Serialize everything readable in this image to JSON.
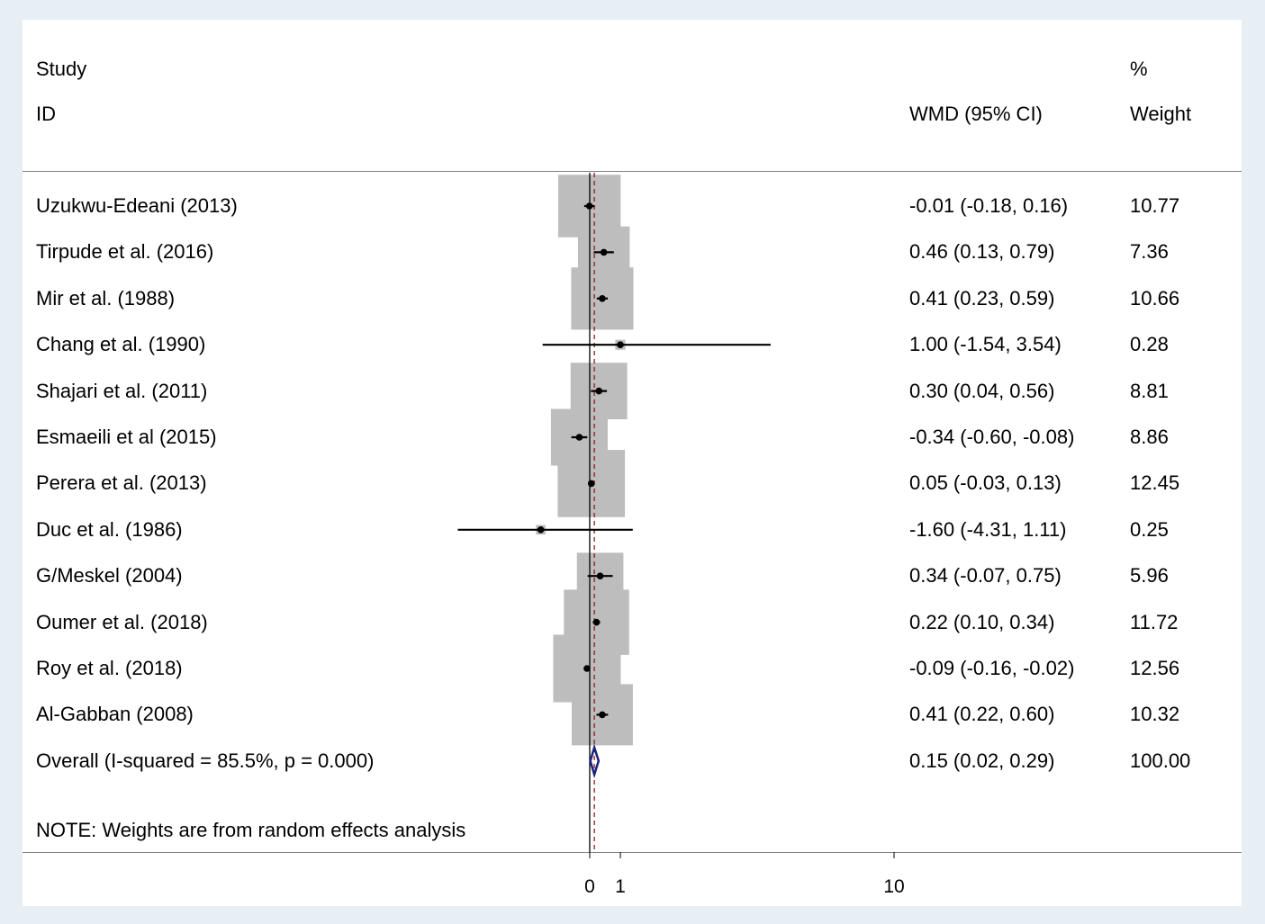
{
  "chart_data": {
    "type": "forest",
    "header": {
      "study_line1": "Study",
      "study_line2": "ID",
      "effect": "WMD (95% CI)",
      "weight_line1": "%",
      "weight_line2": "Weight"
    },
    "studies": [
      {
        "label": "Uzukwu-Edeani (2013)",
        "es_text": "-0.01 (-0.18, 0.16)",
        "weight_text": "10.77",
        "es": -0.01,
        "lo": -0.18,
        "hi": 0.16,
        "weight": 10.77
      },
      {
        "label": "Tirpude et al. (2016)",
        "es_text": "0.46 (0.13, 0.79)",
        "weight_text": "7.36",
        "es": 0.46,
        "lo": 0.13,
        "hi": 0.79,
        "weight": 7.36
      },
      {
        "label": "Mir et al. (1988)",
        "es_text": "0.41 (0.23, 0.59)",
        "weight_text": "10.66",
        "es": 0.41,
        "lo": 0.23,
        "hi": 0.59,
        "weight": 10.66
      },
      {
        "label": "Chang et al. (1990)",
        "es_text": "1.00 (-1.54, 3.54)",
        "weight_text": "0.28",
        "es": 1.0,
        "lo": -1.54,
        "hi": 3.54,
        "weight": 0.28
      },
      {
        "label": "Shajari et al. (2011)",
        "es_text": "0.30 (0.04, 0.56)",
        "weight_text": "8.81",
        "es": 0.3,
        "lo": 0.04,
        "hi": 0.56,
        "weight": 8.81
      },
      {
        "label": "Esmaeili et al (2015)",
        "es_text": "-0.34 (-0.60, -0.08)",
        "weight_text": "8.86",
        "es": -0.34,
        "lo": -0.6,
        "hi": -0.08,
        "weight": 8.86
      },
      {
        "label": "Perera et al. (2013)",
        "es_text": "0.05 (-0.03, 0.13)",
        "weight_text": "12.45",
        "es": 0.05,
        "lo": -0.03,
        "hi": 0.13,
        "weight": 12.45
      },
      {
        "label": "Duc et al. (1986)",
        "es_text": "-1.60 (-4.31, 1.11)",
        "weight_text": "0.25",
        "es": -1.6,
        "lo": -4.31,
        "hi": 1.11,
        "weight": 0.25
      },
      {
        "label": "G/Meskel (2004)",
        "es_text": "0.34 (-0.07, 0.75)",
        "weight_text": "5.96",
        "es": 0.34,
        "lo": -0.07,
        "hi": 0.75,
        "weight": 5.96
      },
      {
        "label": "Oumer et al. (2018)",
        "es_text": "0.22 (0.10, 0.34)",
        "weight_text": "11.72",
        "es": 0.22,
        "lo": 0.1,
        "hi": 0.34,
        "weight": 11.72
      },
      {
        "label": "Roy et al. (2018)",
        "es_text": "-0.09 (-0.16, -0.02)",
        "weight_text": "12.56",
        "es": -0.09,
        "lo": -0.16,
        "hi": -0.02,
        "weight": 12.56
      },
      {
        "label": "Al-Gabban (2008)",
        "es_text": "0.41 (0.22, 0.60)",
        "weight_text": "10.32",
        "es": 0.41,
        "lo": 0.22,
        "hi": 0.6,
        "weight": 10.32
      }
    ],
    "overall": {
      "label": "Overall  (I-squared = 85.5%, p = 0.000)",
      "es_text": "0.15 (0.02, 0.29)",
      "weight_text": "100.00",
      "es": 0.15,
      "lo": 0.02,
      "hi": 0.29
    },
    "note": "NOTE: Weights are from random effects analysis",
    "x_ticks": [
      {
        "value": 0,
        "label": "0"
      },
      {
        "value": 1,
        "label": "1"
      },
      {
        "value": 10,
        "label": "10"
      }
    ],
    "null_line": 0,
    "colors": {
      "box": "#bdbdbd",
      "ci": "#000000",
      "overall_diamond": "#1a237e",
      "overall_line": "#8b1a1a"
    }
  }
}
